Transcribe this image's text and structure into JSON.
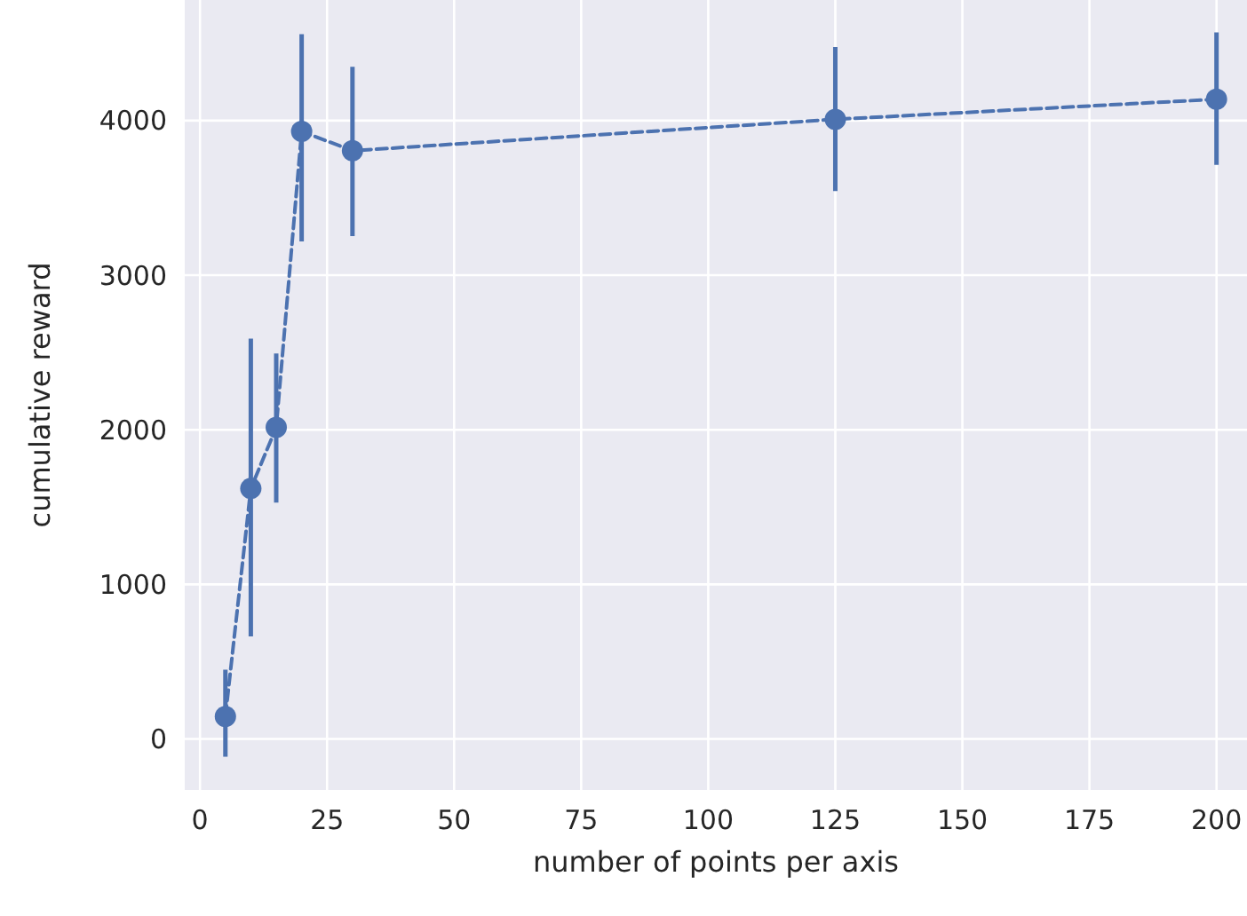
{
  "chart_data": {
    "type": "line",
    "xlabel": "number of points per axis",
    "ylabel": "cumulative reward",
    "xlim": [
      -3,
      206
    ],
    "ylim": [
      -330,
      4780
    ],
    "xticks": [
      0,
      25,
      50,
      75,
      100,
      125,
      150,
      175,
      200
    ],
    "yticks": [
      0,
      1000,
      2000,
      3000,
      4000
    ],
    "grid": true,
    "marker": "circle",
    "line_style": "dashed",
    "series": [
      {
        "color": "#4c72b0",
        "x": [
          5,
          10,
          15,
          20,
          30,
          125,
          200
        ],
        "values": [
          145,
          1620,
          2015,
          3930,
          3805,
          4008,
          4138
        ],
        "errors": [
          [
            -115,
            448
          ],
          [
            663,
            2590
          ],
          [
            1529,
            2494
          ],
          [
            3218,
            4559
          ],
          [
            3253,
            4348
          ],
          [
            3544,
            4475
          ],
          [
            3713,
            4571
          ]
        ]
      }
    ]
  }
}
